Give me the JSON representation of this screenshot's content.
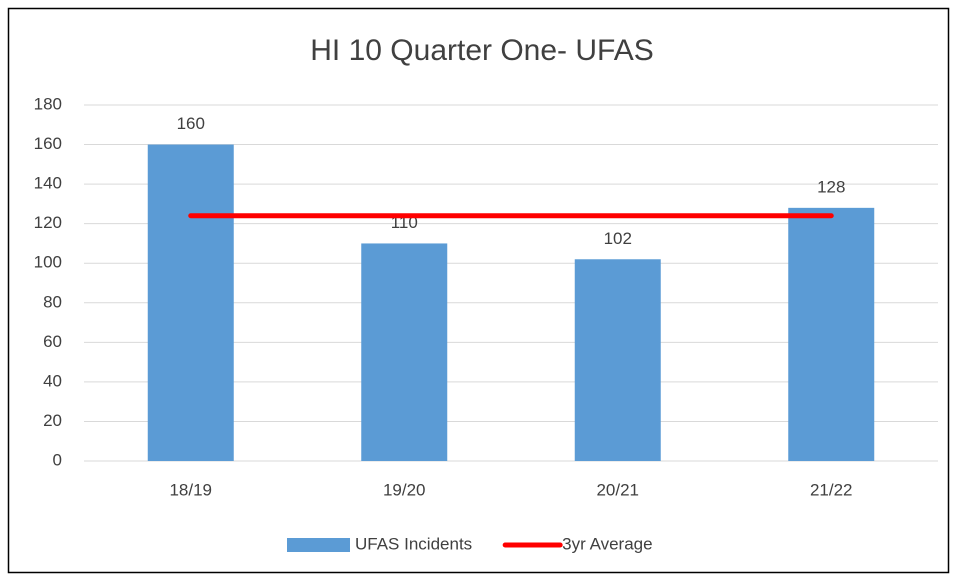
{
  "chart_data": {
    "type": "bar",
    "title": "HI 10  Quarter One- UFAS",
    "categories": [
      "18/19",
      "19/20",
      "20/21",
      "21/22"
    ],
    "series": [
      {
        "name": "UFAS Incidents",
        "color": "#5b9bd5",
        "type": "bar",
        "values": [
          160,
          110,
          102,
          128
        ]
      },
      {
        "name": "3yr Average",
        "color": "#ff0000",
        "type": "line",
        "values": [
          124,
          124,
          124,
          124
        ]
      }
    ],
    "ylim": [
      0,
      180
    ],
    "yticks": [
      0,
      20,
      40,
      60,
      80,
      100,
      120,
      140,
      160,
      180
    ],
    "grid": true,
    "legend": "bottom"
  }
}
